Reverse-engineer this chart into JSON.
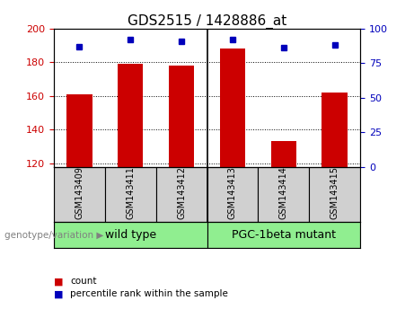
{
  "title": "GDS2515 / 1428886_at",
  "samples": [
    "GSM143409",
    "GSM143411",
    "GSM143412",
    "GSM143413",
    "GSM143414",
    "GSM143415"
  ],
  "bar_values": [
    161,
    179,
    178,
    188,
    133,
    162
  ],
  "percentile_values": [
    87,
    92,
    91,
    92,
    86,
    88
  ],
  "ylim_left": [
    118,
    200
  ],
  "ylim_right": [
    0,
    100
  ],
  "yticks_left": [
    120,
    140,
    160,
    180,
    200
  ],
  "yticks_right": [
    0,
    25,
    50,
    75,
    100
  ],
  "bar_color": "#cc0000",
  "dot_color": "#0000bb",
  "group_labels": [
    "wild type",
    "PGC-1beta mutant"
  ],
  "group_ranges": [
    [
      0,
      3
    ],
    [
      3,
      6
    ]
  ],
  "group_color": "#90ee90",
  "sample_box_color": "#d0d0d0",
  "genotype_label": "genotype/variation",
  "legend_count": "count",
  "legend_percentile": "percentile rank within the sample",
  "bar_width": 0.5,
  "title_fontsize": 11,
  "tick_fontsize": 8,
  "sample_fontsize": 7,
  "group_fontsize": 9
}
